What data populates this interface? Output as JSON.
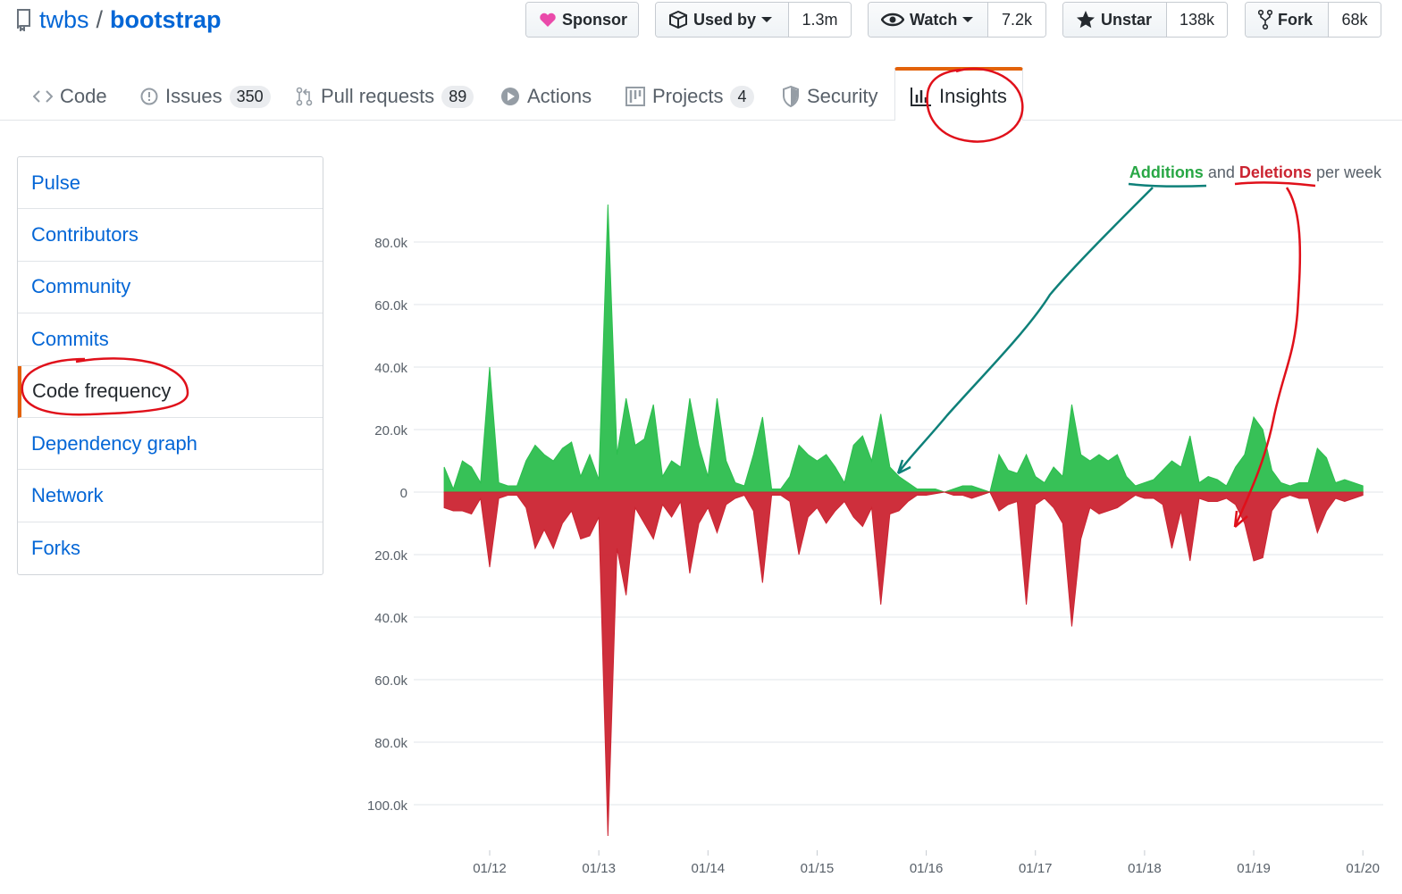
{
  "header": {
    "owner": "twbs",
    "separator": "/",
    "repo": "bootstrap"
  },
  "actions": [
    {
      "label": "Sponsor"
    },
    {
      "label": "Used by",
      "count": "1.3m"
    },
    {
      "label": "Watch",
      "count": "7.2k"
    },
    {
      "label": "Unstar",
      "count": "138k"
    },
    {
      "label": "Fork",
      "count": "68k"
    }
  ],
  "tabs": [
    {
      "label": "Code"
    },
    {
      "label": "Issues",
      "count": 350
    },
    {
      "label": "Pull requests",
      "count": 89
    },
    {
      "label": "Actions"
    },
    {
      "label": "Projects",
      "count": 4
    },
    {
      "label": "Security"
    },
    {
      "label": "Insights"
    }
  ],
  "sidebar": {
    "items": [
      "Pulse",
      "Contributors",
      "Community",
      "Commits",
      "Code frequency",
      "Dependency graph",
      "Network",
      "Forks"
    ]
  },
  "chart_data": {
    "type": "area",
    "legend_joiner": "and",
    "legend_suffix": "per week",
    "x": [
      "08/11",
      "09/11",
      "10/11",
      "11/11",
      "12/11",
      "01/12",
      "02/12",
      "03/12",
      "04/12",
      "05/12",
      "06/12",
      "07/12",
      "08/12",
      "09/12",
      "10/12",
      "11/12",
      "12/12",
      "01/13",
      "02/13",
      "03/13",
      "04/13",
      "05/13",
      "06/13",
      "07/13",
      "08/13",
      "09/13",
      "10/13",
      "11/13",
      "12/13",
      "01/14",
      "02/14",
      "03/14",
      "04/14",
      "05/14",
      "06/14",
      "07/14",
      "08/14",
      "09/14",
      "10/14",
      "11/14",
      "12/14",
      "01/15",
      "02/15",
      "03/15",
      "04/15",
      "05/15",
      "06/15",
      "07/15",
      "08/15",
      "09/15",
      "10/15",
      "11/15",
      "12/15",
      "01/16",
      "02/16",
      "03/16",
      "04/16",
      "05/16",
      "06/16",
      "07/16",
      "08/16",
      "09/16",
      "10/16",
      "11/16",
      "12/16",
      "01/17",
      "02/17",
      "03/17",
      "04/17",
      "05/17",
      "06/17",
      "07/17",
      "08/17",
      "09/17",
      "10/17",
      "11/17",
      "12/17",
      "01/18",
      "02/18",
      "03/18",
      "04/18",
      "05/18",
      "06/18",
      "07/18",
      "08/18",
      "09/18",
      "10/18",
      "11/18",
      "12/18",
      "01/19",
      "02/19",
      "03/19",
      "04/19",
      "05/19",
      "06/19",
      "07/19",
      "08/19",
      "09/19",
      "10/19",
      "11/19",
      "12/19",
      "01/20"
    ],
    "series": [
      {
        "name": "Additions",
        "color": "#2cbe4e",
        "values": [
          8000,
          1000,
          10000,
          8000,
          3000,
          40000,
          3000,
          2000,
          2000,
          10000,
          15000,
          12000,
          10000,
          14000,
          16000,
          5000,
          12000,
          4000,
          92000,
          12000,
          30000,
          15000,
          17000,
          28000,
          5000,
          10000,
          8000,
          30000,
          15000,
          5000,
          30000,
          10000,
          3000,
          2000,
          12000,
          24000,
          1000,
          1000,
          5000,
          15000,
          12000,
          10000,
          12000,
          8000,
          3000,
          15000,
          18000,
          10000,
          25000,
          8000,
          5000,
          3000,
          1000,
          1000,
          1000,
          0,
          1000,
          2000,
          2000,
          1000,
          0,
          12000,
          7000,
          6000,
          12000,
          5000,
          3000,
          8000,
          5000,
          28000,
          12000,
          10000,
          12000,
          10000,
          12000,
          5000,
          2000,
          3000,
          4000,
          7000,
          10000,
          8000,
          18000,
          3000,
          5000,
          4000,
          2000,
          8000,
          12000,
          24000,
          20000,
          7000,
          3000,
          2000,
          3000,
          3000,
          14000,
          11000,
          3000,
          4000,
          3000,
          2000
        ]
      },
      {
        "name": "Deletions",
        "color": "#cb2431",
        "values": [
          -5000,
          -6000,
          -6000,
          -7000,
          -2000,
          -24000,
          -2000,
          -1000,
          -1000,
          -5000,
          -18000,
          -12000,
          -18000,
          -10000,
          -6000,
          -15000,
          -14000,
          -8000,
          -110000,
          -18000,
          -33000,
          -5000,
          -10000,
          -15000,
          -4000,
          -8000,
          -3000,
          -26000,
          -10000,
          -5000,
          -13000,
          -4000,
          -2000,
          -1000,
          -6000,
          -29000,
          -1000,
          -1000,
          -3000,
          -20000,
          -8000,
          -5000,
          -10000,
          -6000,
          -3000,
          -8000,
          -11000,
          -5000,
          -36000,
          -7000,
          -6000,
          -3000,
          -1000,
          -1000,
          -500,
          0,
          -1000,
          -1000,
          -2000,
          -1000,
          0,
          -6000,
          -4000,
          -3000,
          -36000,
          -4000,
          -2000,
          -5000,
          -10000,
          -43000,
          -15000,
          -5000,
          -7000,
          -6000,
          -5000,
          -3000,
          -1000,
          -2000,
          -2000,
          -4000,
          -18000,
          -6000,
          -22000,
          -2000,
          -3000,
          -3000,
          -2000,
          -4000,
          -10000,
          -22000,
          -21000,
          -6000,
          -2000,
          -1000,
          -2000,
          -2000,
          -13000,
          -6000,
          -2000,
          -3000,
          -2000,
          -1000
        ]
      }
    ],
    "ylim": [
      -111000,
      92000
    ],
    "yticks": [
      {
        "value": 80000,
        "label": "80.0k"
      },
      {
        "value": 60000,
        "label": "60.0k"
      },
      {
        "value": 40000,
        "label": "40.0k"
      },
      {
        "value": 20000,
        "label": "20.0k"
      },
      0,
      {
        "value": -20000,
        "label": "20.0k"
      },
      {
        "value": -40000,
        "label": "40.0k"
      },
      {
        "value": -60000,
        "label": "60.0k"
      },
      {
        "value": -80000,
        "label": "80.0k"
      },
      {
        "value": -100000,
        "label": "100.0k"
      }
    ],
    "xticks": [
      "01/12",
      "01/13",
      "01/14",
      "01/15",
      "01/16",
      "01/17",
      "01/18",
      "01/19",
      "01/20"
    ],
    "grid": true
  }
}
